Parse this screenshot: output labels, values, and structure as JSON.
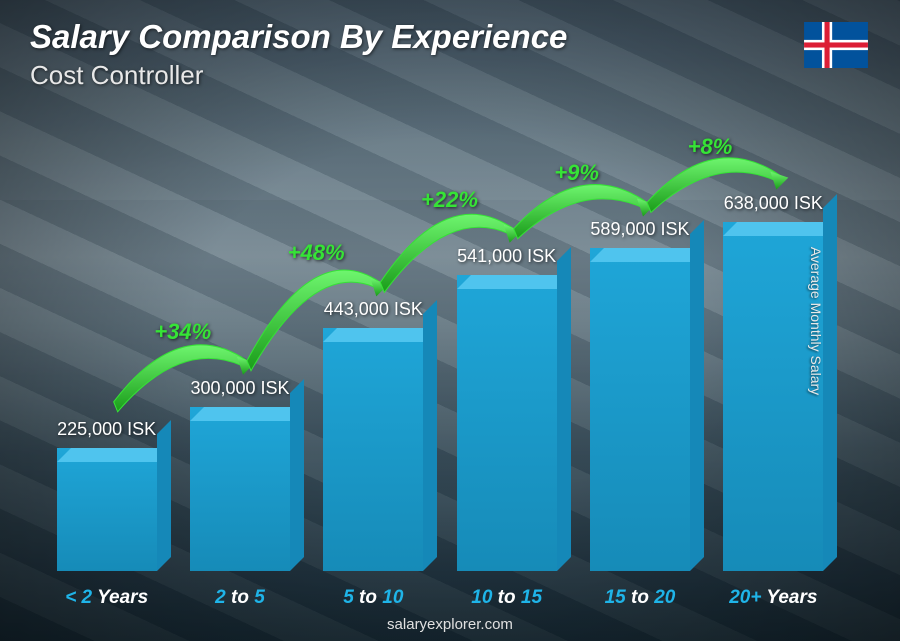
{
  "header": {
    "title": "Salary Comparison By Experience",
    "subtitle": "Cost Controller",
    "title_fontsize": 33,
    "subtitle_fontsize": 26,
    "title_color": "#ffffff",
    "subtitle_color": "#e8e8e8"
  },
  "flag": {
    "name": "iceland",
    "bg": "#02529c",
    "cross_outer": "#ffffff",
    "cross_inner": "#dc1e35"
  },
  "yaxis_label": "Average Monthly Salary",
  "footer": "salaryexplorer.com",
  "chart": {
    "type": "bar",
    "y_max": 700000,
    "bar_front_color": "#1fa6d8",
    "bar_top_color": "#4fc4ee",
    "bar_side_color": "#1588b8",
    "value_color": "#ffffff",
    "value_fontsize": 18,
    "xlabel_highlight_color": "#1fb4e8",
    "xlabel_normal_color": "#ffffff",
    "xlabel_fontsize": 19,
    "percent_color": "#36e336",
    "arrow_stroke": "#36e336",
    "arrow_fill_gradient_start": "#4de34d",
    "arrow_fill_gradient_end": "#149c14",
    "bars": [
      {
        "value": 225000,
        "value_label": "225,000 ISK",
        "xlabel_hl": "< 2",
        "xlabel_nm": " Years"
      },
      {
        "value": 300000,
        "value_label": "300,000 ISK",
        "xlabel_hl": "2",
        "xlabel_nm": " to ",
        "xlabel_hl2": "5"
      },
      {
        "value": 443000,
        "value_label": "443,000 ISK",
        "xlabel_hl": "5",
        "xlabel_nm": " to ",
        "xlabel_hl2": "10"
      },
      {
        "value": 541000,
        "value_label": "541,000 ISK",
        "xlabel_hl": "10",
        "xlabel_nm": " to ",
        "xlabel_hl2": "15"
      },
      {
        "value": 589000,
        "value_label": "589,000 ISK",
        "xlabel_hl": "15",
        "xlabel_nm": " to ",
        "xlabel_hl2": "20"
      },
      {
        "value": 638000,
        "value_label": "638,000 ISK",
        "xlabel_hl": "20+",
        "xlabel_nm": " Years"
      }
    ],
    "percents": [
      {
        "label": "+34%"
      },
      {
        "label": "+48%"
      },
      {
        "label": "+22%"
      },
      {
        "label": "+9%"
      },
      {
        "label": "+8%"
      }
    ]
  },
  "background": {
    "sky_top": "#6a7d8a",
    "panel_dark": "#1a2d35"
  }
}
